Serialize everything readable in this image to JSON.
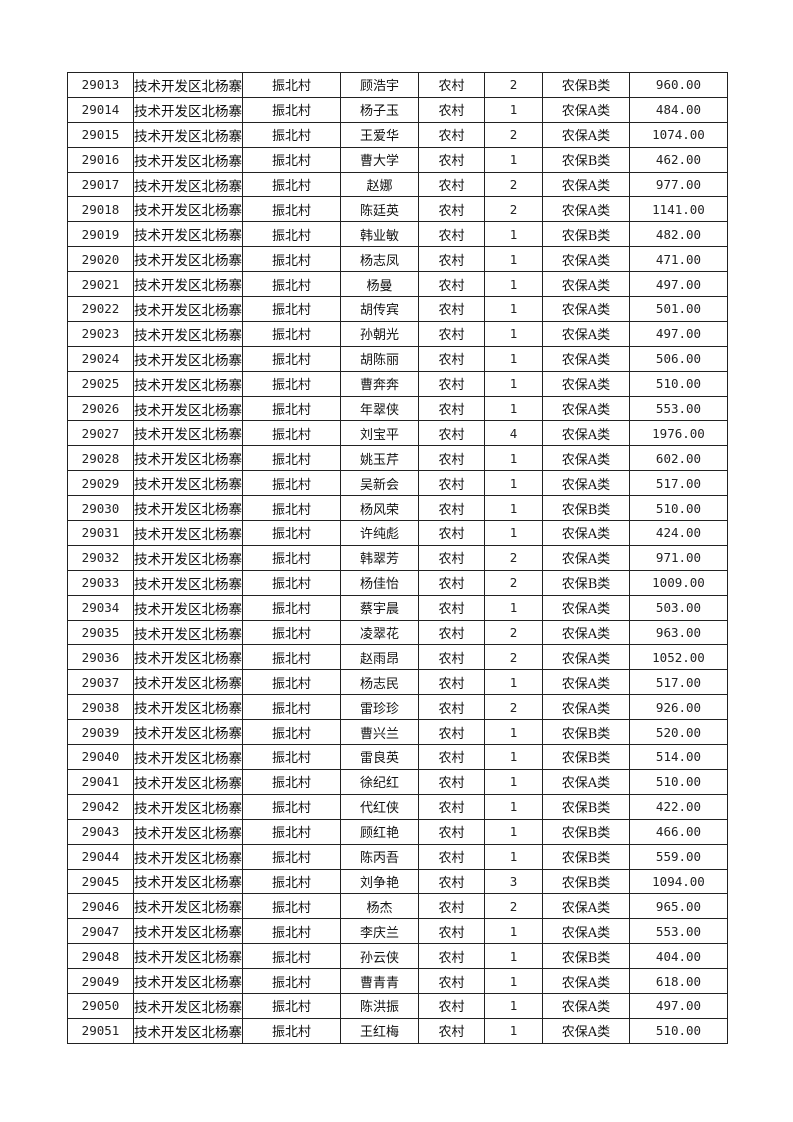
{
  "table": {
    "rows": [
      [
        "29013",
        "技术开发区北杨寨",
        "振北村",
        "顾浩宇",
        "农村",
        "2",
        "农保B类",
        "960.00"
      ],
      [
        "29014",
        "技术开发区北杨寨",
        "振北村",
        "杨子玉",
        "农村",
        "1",
        "农保A类",
        "484.00"
      ],
      [
        "29015",
        "技术开发区北杨寨",
        "振北村",
        "王爱华",
        "农村",
        "2",
        "农保A类",
        "1074.00"
      ],
      [
        "29016",
        "技术开发区北杨寨",
        "振北村",
        "曹大学",
        "农村",
        "1",
        "农保B类",
        "462.00"
      ],
      [
        "29017",
        "技术开发区北杨寨",
        "振北村",
        "赵娜",
        "农村",
        "2",
        "农保A类",
        "977.00"
      ],
      [
        "29018",
        "技术开发区北杨寨",
        "振北村",
        "陈廷英",
        "农村",
        "2",
        "农保A类",
        "1141.00"
      ],
      [
        "29019",
        "技术开发区北杨寨",
        "振北村",
        "韩业敏",
        "农村",
        "1",
        "农保B类",
        "482.00"
      ],
      [
        "29020",
        "技术开发区北杨寨",
        "振北村",
        "杨志凤",
        "农村",
        "1",
        "农保A类",
        "471.00"
      ],
      [
        "29021",
        "技术开发区北杨寨",
        "振北村",
        "杨曼",
        "农村",
        "1",
        "农保A类",
        "497.00"
      ],
      [
        "29022",
        "技术开发区北杨寨",
        "振北村",
        "胡传宾",
        "农村",
        "1",
        "农保A类",
        "501.00"
      ],
      [
        "29023",
        "技术开发区北杨寨",
        "振北村",
        "孙朝光",
        "农村",
        "1",
        "农保A类",
        "497.00"
      ],
      [
        "29024",
        "技术开发区北杨寨",
        "振北村",
        "胡陈丽",
        "农村",
        "1",
        "农保A类",
        "506.00"
      ],
      [
        "29025",
        "技术开发区北杨寨",
        "振北村",
        "曹奔奔",
        "农村",
        "1",
        "农保A类",
        "510.00"
      ],
      [
        "29026",
        "技术开发区北杨寨",
        "振北村",
        "年翠侠",
        "农村",
        "1",
        "农保A类",
        "553.00"
      ],
      [
        "29027",
        "技术开发区北杨寨",
        "振北村",
        "刘宝平",
        "农村",
        "4",
        "农保A类",
        "1976.00"
      ],
      [
        "29028",
        "技术开发区北杨寨",
        "振北村",
        "姚玉芹",
        "农村",
        "1",
        "农保A类",
        "602.00"
      ],
      [
        "29029",
        "技术开发区北杨寨",
        "振北村",
        "吴新会",
        "农村",
        "1",
        "农保A类",
        "517.00"
      ],
      [
        "29030",
        "技术开发区北杨寨",
        "振北村",
        "杨风荣",
        "农村",
        "1",
        "农保B类",
        "510.00"
      ],
      [
        "29031",
        "技术开发区北杨寨",
        "振北村",
        "许纯彪",
        "农村",
        "1",
        "农保A类",
        "424.00"
      ],
      [
        "29032",
        "技术开发区北杨寨",
        "振北村",
        "韩翠芳",
        "农村",
        "2",
        "农保A类",
        "971.00"
      ],
      [
        "29033",
        "技术开发区北杨寨",
        "振北村",
        "杨佳怡",
        "农村",
        "2",
        "农保B类",
        "1009.00"
      ],
      [
        "29034",
        "技术开发区北杨寨",
        "振北村",
        "蔡宇晨",
        "农村",
        "1",
        "农保A类",
        "503.00"
      ],
      [
        "29035",
        "技术开发区北杨寨",
        "振北村",
        "凌翠花",
        "农村",
        "2",
        "农保A类",
        "963.00"
      ],
      [
        "29036",
        "技术开发区北杨寨",
        "振北村",
        "赵雨昂",
        "农村",
        "2",
        "农保A类",
        "1052.00"
      ],
      [
        "29037",
        "技术开发区北杨寨",
        "振北村",
        "杨志民",
        "农村",
        "1",
        "农保A类",
        "517.00"
      ],
      [
        "29038",
        "技术开发区北杨寨",
        "振北村",
        "雷珍珍",
        "农村",
        "2",
        "农保A类",
        "926.00"
      ],
      [
        "29039",
        "技术开发区北杨寨",
        "振北村",
        "曹兴兰",
        "农村",
        "1",
        "农保B类",
        "520.00"
      ],
      [
        "29040",
        "技术开发区北杨寨",
        "振北村",
        "雷良英",
        "农村",
        "1",
        "农保B类",
        "514.00"
      ],
      [
        "29041",
        "技术开发区北杨寨",
        "振北村",
        "徐纪红",
        "农村",
        "1",
        "农保A类",
        "510.00"
      ],
      [
        "29042",
        "技术开发区北杨寨",
        "振北村",
        "代红侠",
        "农村",
        "1",
        "农保B类",
        "422.00"
      ],
      [
        "29043",
        "技术开发区北杨寨",
        "振北村",
        "顾红艳",
        "农村",
        "1",
        "农保B类",
        "466.00"
      ],
      [
        "29044",
        "技术开发区北杨寨",
        "振北村",
        "陈丙吾",
        "农村",
        "1",
        "农保B类",
        "559.00"
      ],
      [
        "29045",
        "技术开发区北杨寨",
        "振北村",
        "刘争艳",
        "农村",
        "3",
        "农保B类",
        "1094.00"
      ],
      [
        "29046",
        "技术开发区北杨寨",
        "振北村",
        "杨杰",
        "农村",
        "2",
        "农保A类",
        "965.00"
      ],
      [
        "29047",
        "技术开发区北杨寨",
        "振北村",
        "李庆兰",
        "农村",
        "1",
        "农保A类",
        "553.00"
      ],
      [
        "29048",
        "技术开发区北杨寨",
        "振北村",
        "孙云侠",
        "农村",
        "1",
        "农保B类",
        "404.00"
      ],
      [
        "29049",
        "技术开发区北杨寨",
        "振北村",
        "曹青青",
        "农村",
        "1",
        "农保A类",
        "618.00"
      ],
      [
        "29050",
        "技术开发区北杨寨",
        "振北村",
        "陈洪振",
        "农村",
        "1",
        "农保A类",
        "497.00"
      ],
      [
        "29051",
        "技术开发区北杨寨",
        "振北村",
        "王红梅",
        "农村",
        "1",
        "农保A类",
        "510.00"
      ]
    ]
  }
}
